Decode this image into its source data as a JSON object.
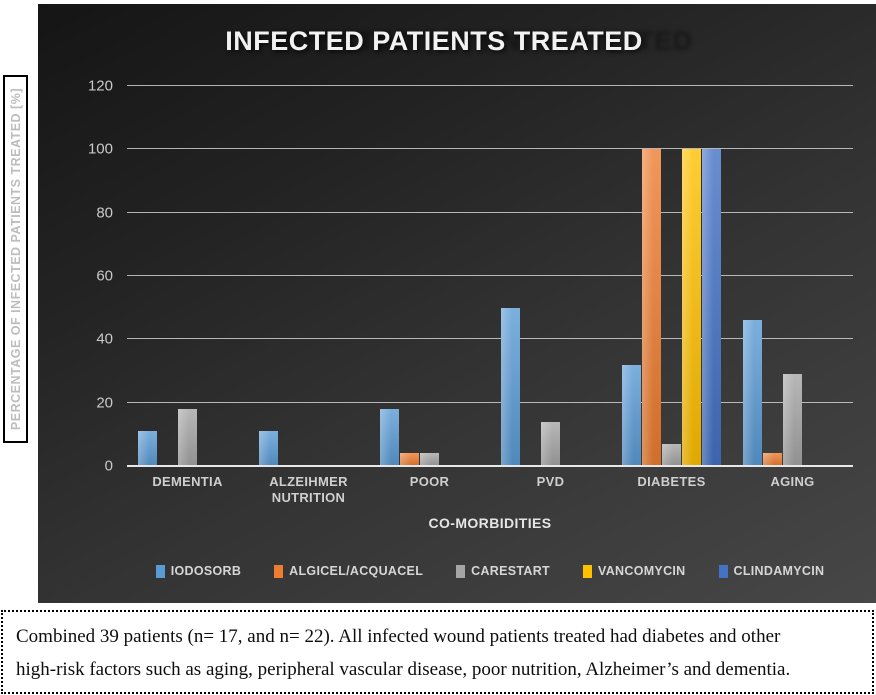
{
  "chart_data": {
    "type": "bar",
    "title": "INFECTED PATIENTS TREATED",
    "xlabel": "CO-MORBIDITIES",
    "ylabel": "PERCENTAGE OF INFECTED PATIENTS TREATED [%]",
    "ylim": [
      0,
      120
    ],
    "yticks": [
      0,
      20,
      40,
      60,
      80,
      100,
      120
    ],
    "grid": "horizontal",
    "legend_position": "bottom",
    "categories": [
      "DEMENTIA",
      "ALZEIHMER NUTRITION",
      "POOR",
      "PVD",
      "DIABETES",
      "AGING"
    ],
    "series": [
      {
        "name": "IODOSORB",
        "color": "#5B9BD5",
        "values": [
          11,
          11,
          18,
          50,
          32,
          46
        ]
      },
      {
        "name": "ALGICEL/ACQUACEL",
        "color": "#ED7D31",
        "values": [
          0,
          0,
          4,
          0,
          100,
          4
        ]
      },
      {
        "name": "CARESTART",
        "color": "#A5A5A5",
        "values": [
          18,
          0,
          4,
          14,
          7,
          29
        ]
      },
      {
        "name": "VANCOMYCIN",
        "color": "#FFC000",
        "values": [
          0,
          0,
          0,
          0,
          100,
          0
        ]
      },
      {
        "name": "CLINDAMYCIN",
        "color": "#4472C4",
        "values": [
          0,
          0,
          0,
          0,
          100,
          0
        ]
      }
    ],
    "panel_background": "#2e2e2e",
    "gridline_color": "#dedede"
  },
  "caption": {
    "lines": [
      "Combined 39 patients (n= 17, and n= 22). All infected wound patients treated had diabetes and other",
      "high-risk factors such as aging, peripheral vascular disease, poor nutrition, Alzheimer’s and dementia."
    ]
  }
}
